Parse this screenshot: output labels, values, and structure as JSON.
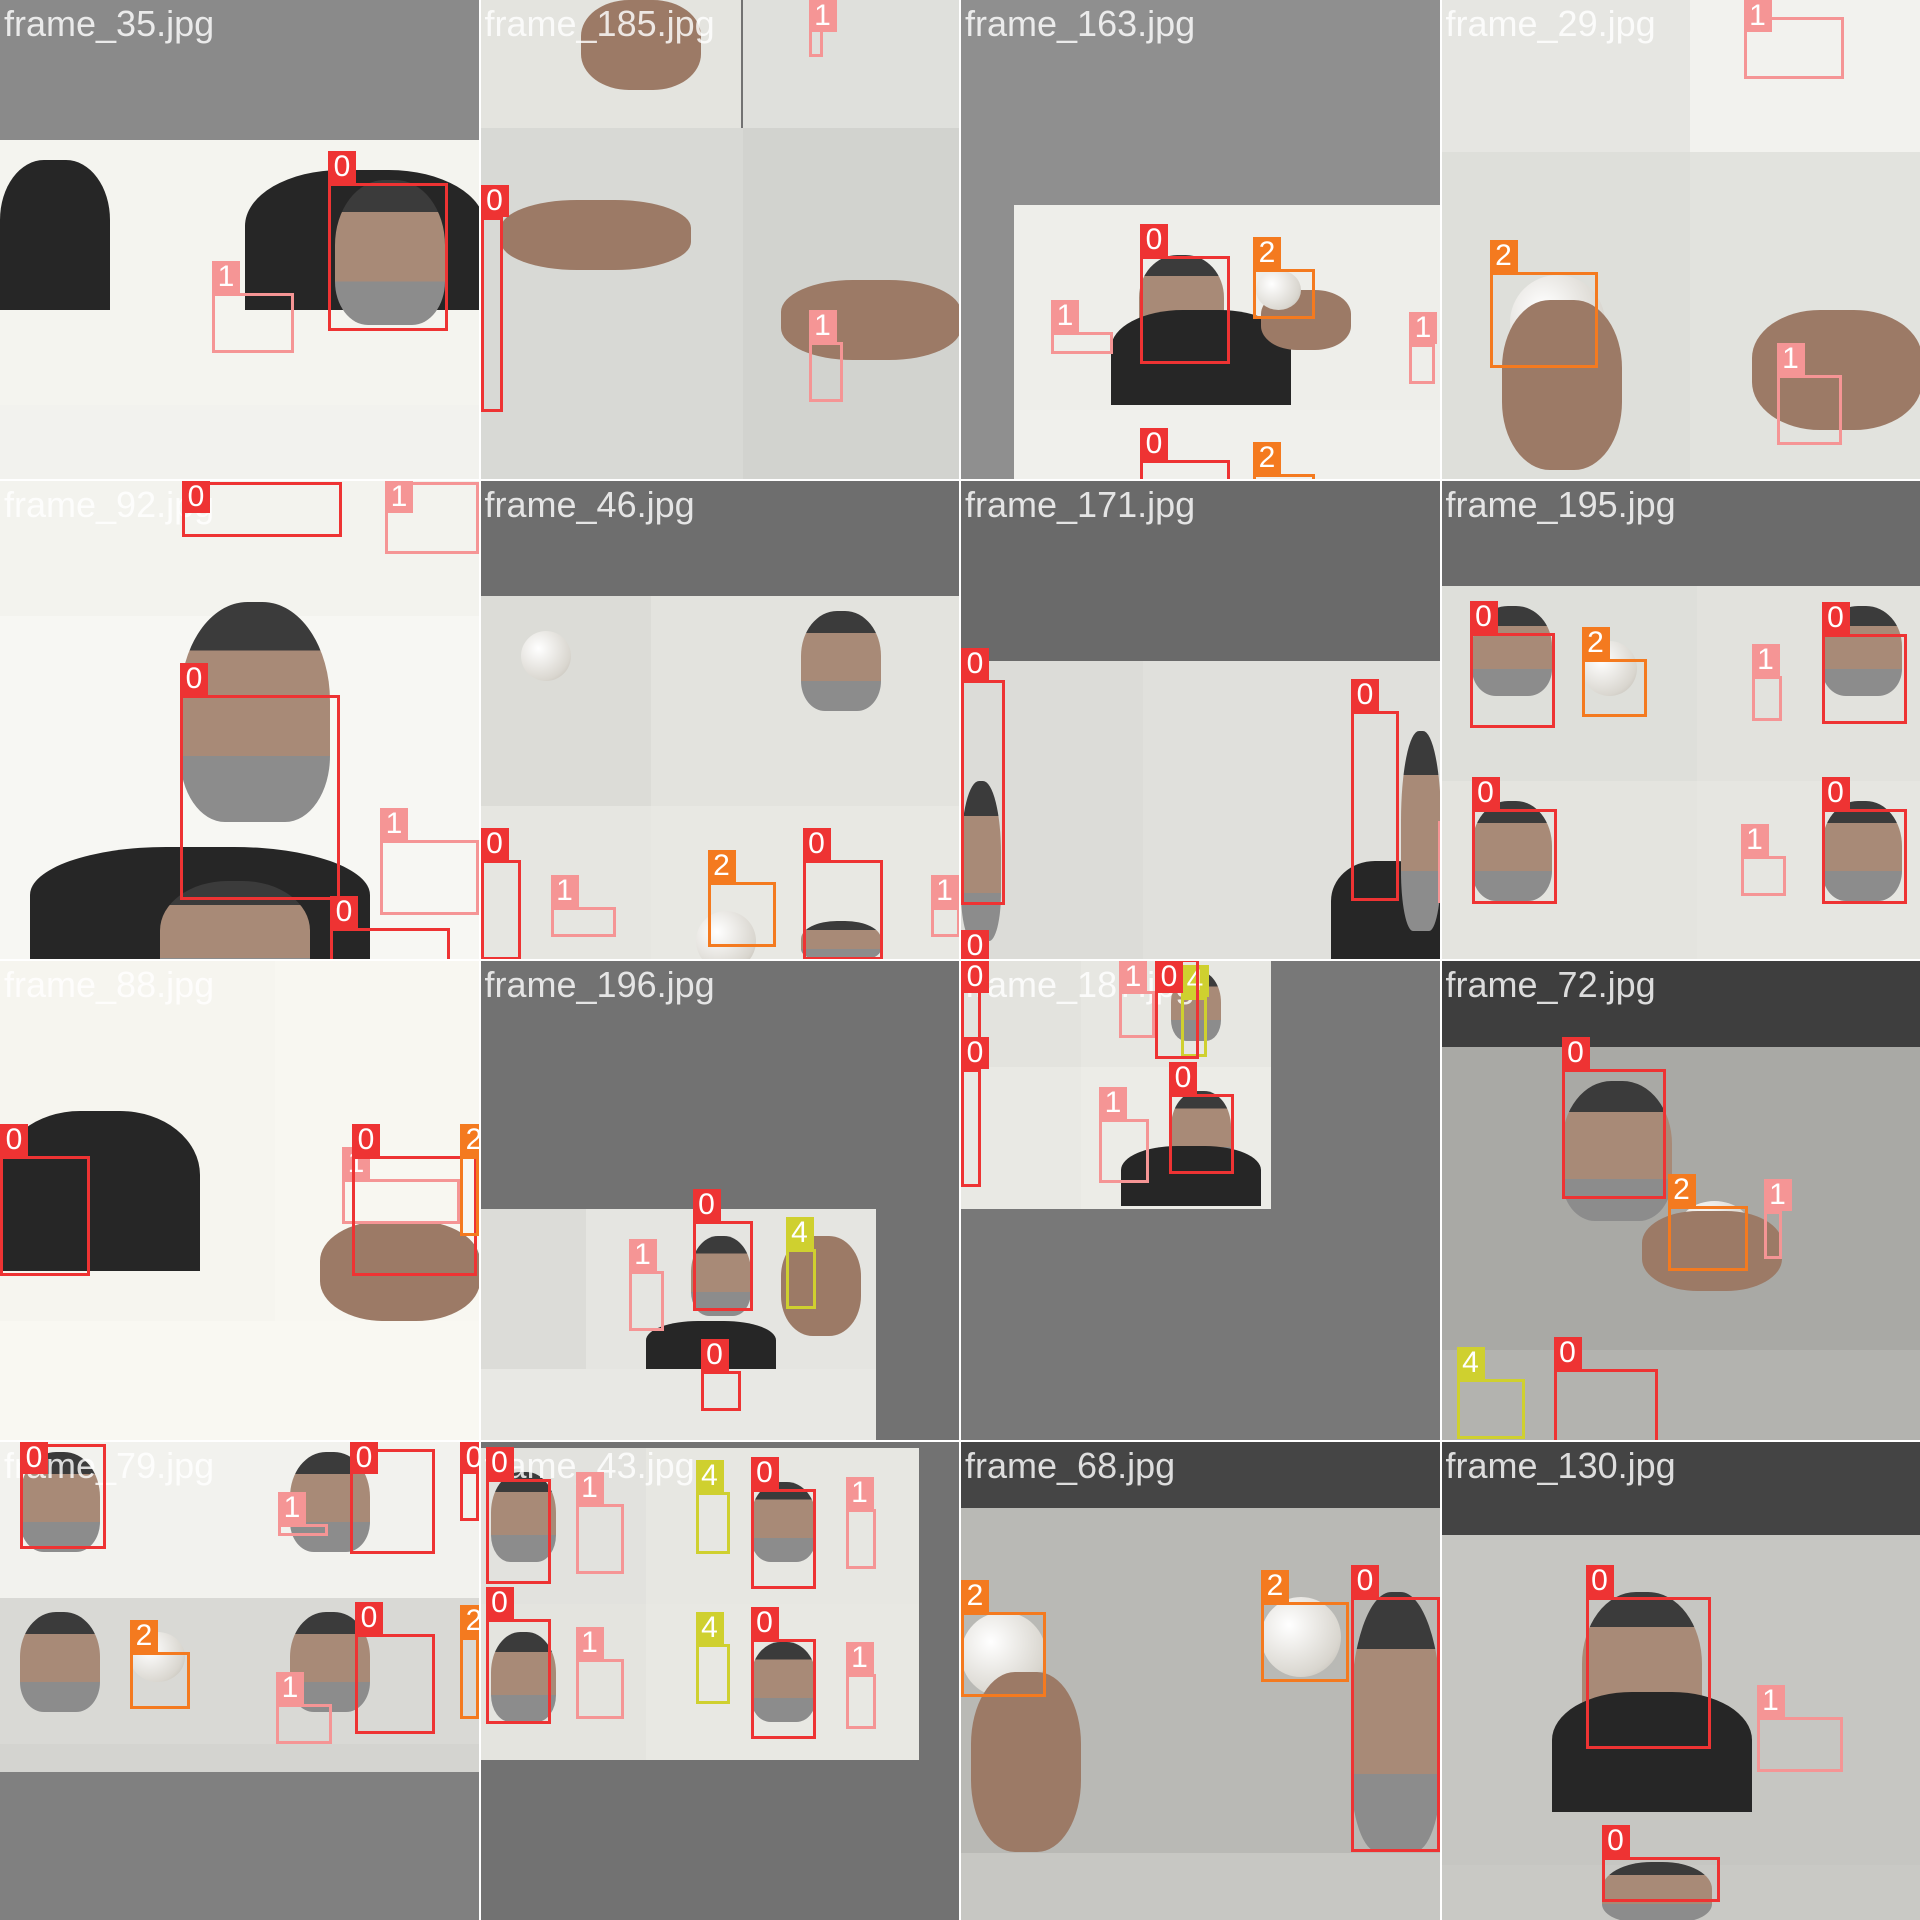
{
  "class_colors": {
    "0": "#ee3333",
    "1": "#f59595",
    "2": "#f47a1f",
    "4": "#cfd02f"
  },
  "tiles": [
    {
      "caption": "frame_35.jpg"
    },
    {
      "caption": "frame_185.jpg"
    },
    {
      "caption": "frame_163.jpg"
    },
    {
      "caption": "frame_29.jpg"
    },
    {
      "caption": "frame_92.jpg"
    },
    {
      "caption": "frame_46.jpg"
    },
    {
      "caption": "frame_171.jpg"
    },
    {
      "caption": "frame_195.jpg"
    },
    {
      "caption": "frame_88.jpg"
    },
    {
      "caption": "frame_196.jpg"
    },
    {
      "caption": "frame_187.jpg"
    },
    {
      "caption": "frame_72.jpg"
    },
    {
      "caption": "frame_79.jpg"
    },
    {
      "caption": "frame_43.jpg"
    },
    {
      "caption": "frame_68.jpg"
    },
    {
      "caption": "frame_130.jpg"
    }
  ],
  "detections": [
    [
      {
        "label": "0"
      },
      {
        "label": "1"
      }
    ],
    [
      {
        "label": "1"
      },
      {
        "label": "0"
      },
      {
        "label": "1"
      }
    ],
    [
      {
        "label": "0"
      },
      {
        "label": "2"
      },
      {
        "label": "1"
      },
      {
        "label": "1"
      },
      {
        "label": "0"
      },
      {
        "label": "2"
      }
    ],
    [
      {
        "label": "1"
      },
      {
        "label": "2"
      },
      {
        "label": "1"
      }
    ],
    [
      {
        "label": "0"
      },
      {
        "label": "0"
      },
      {
        "label": "1"
      },
      {
        "label": "0"
      },
      {
        "label": "1"
      }
    ],
    [
      {
        "label": "0"
      },
      {
        "label": "2"
      },
      {
        "label": "0"
      },
      {
        "label": "1"
      },
      {
        "label": "1"
      }
    ],
    [
      {
        "label": "0"
      },
      {
        "label": "0"
      },
      {
        "label": "1"
      },
      {
        "label": "0"
      }
    ],
    [
      {
        "label": "0"
      },
      {
        "label": "2"
      },
      {
        "label": "0"
      },
      {
        "label": "1"
      },
      {
        "label": "0"
      },
      {
        "label": "0"
      },
      {
        "label": "1"
      }
    ],
    [
      {
        "label": "1"
      },
      {
        "label": "0"
      },
      {
        "label": "0"
      },
      {
        "label": "2"
      }
    ],
    [
      {
        "label": "0"
      },
      {
        "label": "4"
      },
      {
        "label": "1"
      },
      {
        "label": "0"
      }
    ],
    [
      {
        "label": "0"
      },
      {
        "label": "4"
      },
      {
        "label": "1"
      },
      {
        "label": "0"
      },
      {
        "label": "0"
      },
      {
        "label": "1"
      },
      {
        "label": "0"
      }
    ],
    [
      {
        "label": "0"
      },
      {
        "label": "2"
      },
      {
        "label": "1"
      },
      {
        "label": "4"
      },
      {
        "label": "0"
      }
    ],
    [
      {
        "label": "0"
      },
      {
        "label": "1"
      },
      {
        "label": "0"
      },
      {
        "label": "0"
      },
      {
        "label": "2"
      },
      {
        "label": "0"
      },
      {
        "label": "1"
      },
      {
        "label": "2"
      }
    ],
    [
      {
        "label": "0"
      },
      {
        "label": "1"
      },
      {
        "label": "4"
      },
      {
        "label": "0"
      },
      {
        "label": "1"
      },
      {
        "label": "0"
      },
      {
        "label": "1"
      },
      {
        "label": "4"
      },
      {
        "label": "0"
      },
      {
        "label": "1"
      }
    ],
    [
      {
        "label": "2"
      },
      {
        "label": "2"
      },
      {
        "label": "0"
      }
    ],
    [
      {
        "label": "0"
      },
      {
        "label": "1"
      },
      {
        "label": "0"
      }
    ]
  ]
}
